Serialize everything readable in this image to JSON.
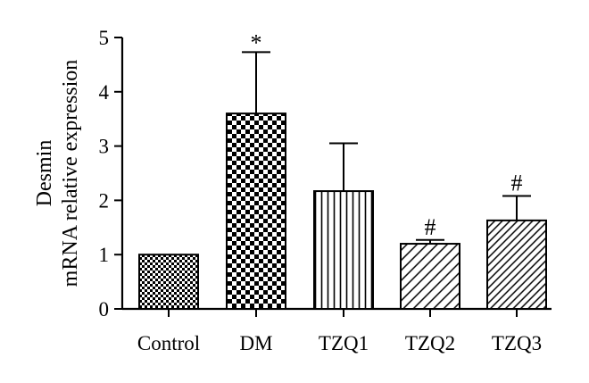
{
  "chart_data": {
    "type": "bar",
    "categories": [
      "Control",
      "DM",
      "TZQ1",
      "TZQ2",
      "TZQ3"
    ],
    "values": [
      1.0,
      3.6,
      2.17,
      1.2,
      1.63
    ],
    "errors": [
      0.0,
      1.13,
      0.88,
      0.07,
      0.45
    ],
    "annotations": [
      "",
      "*",
      "",
      "#",
      "#"
    ],
    "patterns": [
      "fine-checker",
      "coarse-checker",
      "vertical-lines",
      "diagonal-lines",
      "diagonal-lines-dense"
    ],
    "ylabel": [
      "Desmin",
      "mRNA relative expression"
    ],
    "ylim": [
      0,
      5
    ],
    "yticks": [
      0,
      1,
      2,
      3,
      4,
      5
    ],
    "grid": false,
    "title": "",
    "xlabel": ""
  }
}
